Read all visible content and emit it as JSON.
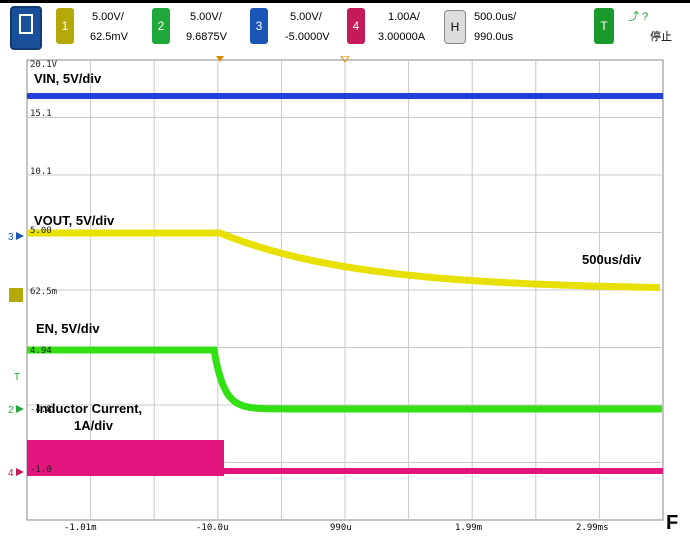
{
  "toolbar": {
    "ch1": {
      "num": "1",
      "scale": "5.00V/",
      "offset": "62.5mV",
      "color": "#b5a80a"
    },
    "ch2": {
      "num": "2",
      "scale": "5.00V/",
      "offset": "9.6875V",
      "color": "#1fa83a"
    },
    "ch3": {
      "num": "3",
      "scale": "5.00V/",
      "offset": "-5.0000V",
      "color": "#1b55b8"
    },
    "ch4": {
      "num": "4",
      "scale": "1.00A/",
      "offset": "3.00000A",
      "color": "#c41a5a"
    },
    "horizontal": {
      "label": "H",
      "scale": "500.0us/",
      "delay": "990.0us"
    },
    "trigger": {
      "label": "T",
      "status": "停止",
      "color": "#1a9a2a"
    }
  },
  "traces": {
    "vin_label": "VIN, 5V/div",
    "vout_label": "VOUT, 5V/div",
    "en_label": "EN, 5V/div",
    "inductor_label_1": "Inductor Current,",
    "inductor_label_2": "1A/div",
    "timebase_label": "500us/div"
  },
  "grid_labels": {
    "top": "20.1V",
    "l15": "15.1",
    "l10": "10.1",
    "l5": "5.00",
    "l62": "62.5m",
    "l49": "4.94",
    "l2": "-4.8",
    "l4": "-1.0"
  },
  "x_axis": [
    "-1.01m",
    "-10.0u",
    "990u",
    "1.99m",
    "2.99ms"
  ],
  "footer_mark": "F",
  "colors": {
    "vin": "#1f3fd8",
    "vout": "#e8e000",
    "en": "#33e014",
    "inductor": "#e2157f",
    "grid": "#c8c8c8"
  }
}
